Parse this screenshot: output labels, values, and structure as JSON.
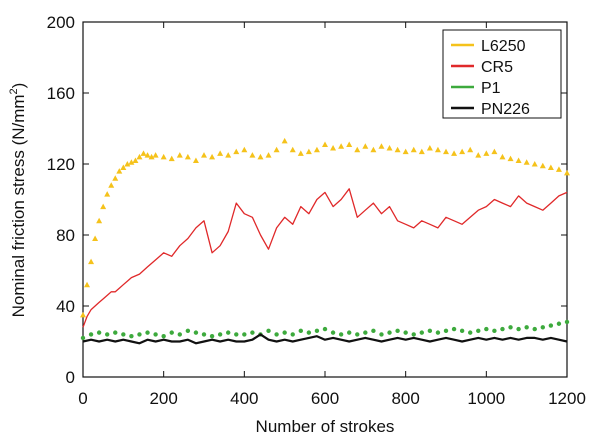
{
  "chart_data": {
    "type": "scatter",
    "xlabel": "Number of strokes",
    "ylabel": "Nominal friction stress (N/mm",
    "ylabel_sup": "2",
    "ylabel_close": ")",
    "xlim": [
      0,
      1200
    ],
    "ylim": [
      0,
      200
    ],
    "xticks": [
      "0",
      "200",
      "400",
      "600",
      "800",
      "1000",
      "1200"
    ],
    "yticks": [
      "0",
      "40",
      "80",
      "120",
      "160",
      "200"
    ],
    "grid": false,
    "legend_position": "top-right",
    "series": [
      {
        "name": "L6250",
        "color": "#f5c21b",
        "marker": "triangle",
        "x": [
          0,
          10,
          20,
          30,
          40,
          50,
          60,
          70,
          80,
          90,
          100,
          110,
          120,
          130,
          140,
          150,
          160,
          170,
          180,
          200,
          220,
          240,
          260,
          280,
          300,
          320,
          340,
          360,
          380,
          400,
          420,
          440,
          460,
          480,
          500,
          520,
          540,
          560,
          580,
          600,
          620,
          640,
          660,
          680,
          700,
          720,
          740,
          760,
          780,
          800,
          820,
          840,
          860,
          880,
          900,
          920,
          940,
          960,
          980,
          1000,
          1020,
          1040,
          1060,
          1080,
          1100,
          1120,
          1140,
          1160,
          1180,
          1200
        ],
        "y": [
          35,
          52,
          65,
          78,
          88,
          96,
          103,
          108,
          112,
          116,
          118,
          120,
          121,
          122,
          124,
          126,
          125,
          124,
          125,
          124,
          123,
          125,
          124,
          122,
          125,
          124,
          126,
          125,
          127,
          128,
          125,
          124,
          125,
          128,
          133,
          128,
          126,
          127,
          128,
          131,
          129,
          130,
          131,
          128,
          130,
          128,
          130,
          129,
          128,
          127,
          128,
          127,
          129,
          128,
          127,
          126,
          127,
          128,
          125,
          126,
          127,
          124,
          123,
          122,
          121,
          120,
          119,
          118,
          117,
          115
        ]
      },
      {
        "name": "CR5",
        "color": "#e0292a",
        "marker": "line",
        "x": [
          0,
          10,
          20,
          30,
          40,
          50,
          60,
          70,
          80,
          90,
          100,
          120,
          140,
          160,
          180,
          200,
          220,
          240,
          260,
          280,
          300,
          320,
          340,
          360,
          380,
          400,
          420,
          440,
          460,
          480,
          500,
          520,
          540,
          560,
          580,
          600,
          620,
          640,
          660,
          680,
          700,
          720,
          740,
          760,
          780,
          800,
          820,
          840,
          860,
          880,
          900,
          920,
          940,
          960,
          980,
          1000,
          1020,
          1040,
          1060,
          1080,
          1100,
          1120,
          1140,
          1160,
          1180,
          1200
        ],
        "y": [
          28,
          34,
          38,
          40,
          42,
          44,
          46,
          48,
          48,
          50,
          52,
          56,
          58,
          62,
          66,
          70,
          68,
          74,
          78,
          84,
          88,
          70,
          74,
          82,
          98,
          92,
          90,
          80,
          72,
          84,
          90,
          86,
          96,
          92,
          100,
          104,
          96,
          100,
          106,
          90,
          94,
          98,
          92,
          96,
          88,
          86,
          84,
          88,
          86,
          84,
          90,
          88,
          86,
          90,
          94,
          96,
          100,
          98,
          96,
          102,
          98,
          96,
          94,
          98,
          102,
          104
        ]
      },
      {
        "name": "P1",
        "color": "#3daa3d",
        "marker": "dot",
        "x": [
          0,
          20,
          40,
          60,
          80,
          100,
          120,
          140,
          160,
          180,
          200,
          220,
          240,
          260,
          280,
          300,
          320,
          340,
          360,
          380,
          400,
          420,
          440,
          460,
          480,
          500,
          520,
          540,
          560,
          580,
          600,
          620,
          640,
          660,
          680,
          700,
          720,
          740,
          760,
          780,
          800,
          820,
          840,
          860,
          880,
          900,
          920,
          940,
          960,
          980,
          1000,
          1020,
          1040,
          1060,
          1080,
          1100,
          1120,
          1140,
          1160,
          1180,
          1200
        ],
        "y": [
          22,
          24,
          25,
          24,
          25,
          24,
          23,
          24,
          25,
          24,
          23,
          25,
          24,
          26,
          25,
          24,
          23,
          24,
          25,
          24,
          24,
          25,
          24,
          26,
          24,
          25,
          24,
          26,
          25,
          26,
          27,
          25,
          24,
          25,
          24,
          25,
          26,
          24,
          25,
          26,
          25,
          24,
          25,
          26,
          25,
          26,
          27,
          26,
          25,
          26,
          27,
          26,
          27,
          28,
          27,
          28,
          27,
          28,
          29,
          30,
          31
        ]
      },
      {
        "name": "PN226",
        "color": "#111111",
        "marker": "line",
        "x": [
          0,
          20,
          40,
          60,
          80,
          100,
          120,
          140,
          160,
          180,
          200,
          220,
          240,
          260,
          280,
          300,
          320,
          340,
          360,
          380,
          400,
          420,
          440,
          460,
          480,
          500,
          520,
          540,
          560,
          580,
          600,
          620,
          640,
          660,
          680,
          700,
          720,
          740,
          760,
          780,
          800,
          820,
          840,
          860,
          880,
          900,
          920,
          940,
          960,
          980,
          1000,
          1020,
          1040,
          1060,
          1080,
          1100,
          1120,
          1140,
          1160,
          1180,
          1200
        ],
        "y": [
          20,
          21,
          20,
          21,
          20,
          21,
          20,
          19,
          21,
          20,
          21,
          20,
          20,
          21,
          19,
          20,
          21,
          20,
          21,
          20,
          20,
          21,
          24,
          21,
          20,
          21,
          20,
          21,
          22,
          23,
          21,
          22,
          21,
          20,
          21,
          22,
          21,
          20,
          21,
          22,
          21,
          22,
          21,
          20,
          21,
          22,
          21,
          20,
          21,
          22,
          21,
          22,
          21,
          22,
          21,
          22,
          22,
          21,
          22,
          21,
          20
        ]
      }
    ]
  }
}
